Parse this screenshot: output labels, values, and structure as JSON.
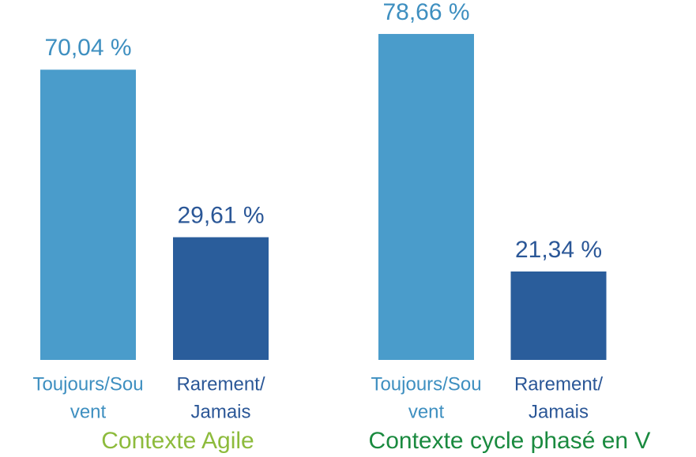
{
  "chart_data": [
    {
      "type": "bar",
      "xlabel": "Contexte Agile",
      "xlabel_color": "#8dbb3c",
      "categories": [
        [
          "Toujours/Sou",
          "vent"
        ],
        [
          "Rarement/",
          "Jamais"
        ]
      ],
      "values": [
        70.04,
        29.61
      ],
      "value_labels": [
        "70,04 %",
        "29,61 %"
      ],
      "colors": [
        "#4a9ccb",
        "#2a5d9b"
      ]
    },
    {
      "type": "bar",
      "xlabel": "Contexte cycle phasé en V",
      "xlabel_color": "#1a8a3f",
      "categories": [
        [
          "Toujours/Sou",
          "vent"
        ],
        [
          "Rarement/",
          "Jamais"
        ]
      ],
      "values": [
        78.66,
        21.34
      ],
      "value_labels": [
        "78,66 %",
        "21,34 %"
      ],
      "colors": [
        "#4a9ccb",
        "#2a5d9b"
      ]
    }
  ]
}
